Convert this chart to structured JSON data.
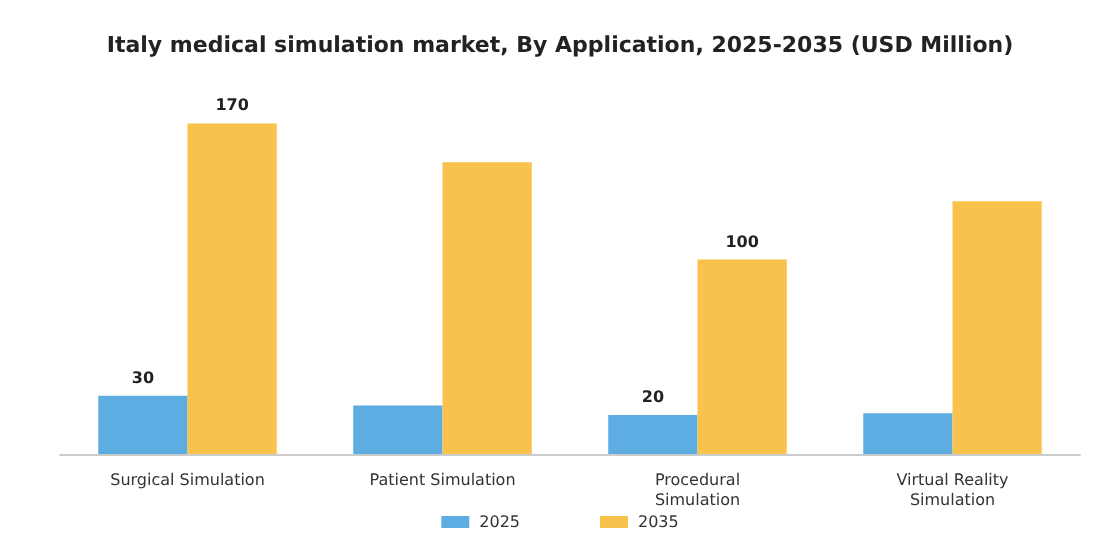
{
  "chart_data": {
    "type": "bar",
    "title": "Italy medical simulation market, By Application, 2025-2035 (USD Million)",
    "categories": [
      "Surgical Simulation",
      "Patient Simulation",
      "Procedural\nSimulation",
      "Virtual Reality\nSimulation"
    ],
    "series": [
      {
        "name": "2025",
        "color": "#5dade2",
        "values": [
          30,
          25,
          20,
          21
        ],
        "value_labels": [
          "30",
          null,
          "20",
          null
        ]
      },
      {
        "name": "2035",
        "color": "#f8c24d",
        "values": [
          170,
          150,
          100,
          130
        ],
        "value_labels": [
          "170",
          null,
          "100",
          null
        ]
      }
    ],
    "legend": "bottom",
    "grid": false
  }
}
